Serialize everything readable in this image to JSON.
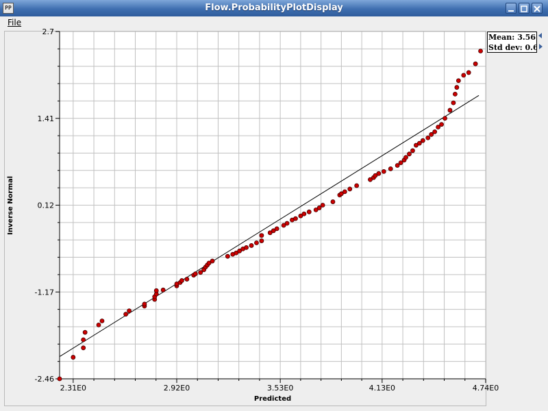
{
  "window": {
    "title": "Flow.ProbabilityPlotDisplay",
    "app_icon_text": "PP"
  },
  "menu": {
    "file_label": "File"
  },
  "stats": {
    "mean": "Mean: 3.56",
    "std_dev": "Std dev: 0.6"
  },
  "chart_data": {
    "type": "scatter",
    "xlabel": "Predicted",
    "ylabel": "Inverse Normal",
    "xlim": [
      2.23,
      4.74
    ],
    "ylim": [
      -2.46,
      2.7
    ],
    "x_ticks": [
      {
        "value": 2.31,
        "label": "2.31E0"
      },
      {
        "value": 2.92,
        "label": "2.92E0"
      },
      {
        "value": 3.53,
        "label": "3.53E0"
      },
      {
        "value": 4.13,
        "label": "4.13E0"
      },
      {
        "value": 4.74,
        "label": "4.74E0"
      }
    ],
    "y_ticks": [
      {
        "value": 2.7,
        "label": "2.7"
      },
      {
        "value": 1.41,
        "label": "1.41"
      },
      {
        "value": 0.12,
        "label": "0.12"
      },
      {
        "value": -1.17,
        "label": "-1.17"
      },
      {
        "value": -2.46,
        "label": "-2.46"
      }
    ],
    "grid": true,
    "fit_line": {
      "x": [
        2.23,
        4.7
      ],
      "y": [
        -2.13,
        1.75
      ]
    },
    "colors": {
      "point": "#cc0000",
      "line": "#000000",
      "grid": "#c0c0c0"
    },
    "points": [
      [
        2.23,
        -2.46
      ],
      [
        2.31,
        -2.14
      ],
      [
        2.37,
        -2.0
      ],
      [
        2.37,
        -1.88
      ],
      [
        2.38,
        -1.77
      ],
      [
        2.46,
        -1.66
      ],
      [
        2.48,
        -1.6
      ],
      [
        2.62,
        -1.5
      ],
      [
        2.64,
        -1.45
      ],
      [
        2.73,
        -1.38
      ],
      [
        2.73,
        -1.35
      ],
      [
        2.79,
        -1.28
      ],
      [
        2.79,
        -1.24
      ],
      [
        2.8,
        -1.2
      ],
      [
        2.8,
        -1.15
      ],
      [
        2.84,
        -1.14
      ],
      [
        2.92,
        -1.08
      ],
      [
        2.92,
        -1.05
      ],
      [
        2.94,
        -1.03
      ],
      [
        2.95,
        -1.0
      ],
      [
        2.98,
        -0.98
      ],
      [
        3.02,
        -0.92
      ],
      [
        3.03,
        -0.9
      ],
      [
        3.06,
        -0.88
      ],
      [
        3.08,
        -0.84
      ],
      [
        3.09,
        -0.8
      ],
      [
        3.1,
        -0.77
      ],
      [
        3.11,
        -0.74
      ],
      [
        3.13,
        -0.71
      ],
      [
        3.22,
        -0.64
      ],
      [
        3.25,
        -0.61
      ],
      [
        3.27,
        -0.59
      ],
      [
        3.29,
        -0.56
      ],
      [
        3.31,
        -0.53
      ],
      [
        3.33,
        -0.51
      ],
      [
        3.36,
        -0.48
      ],
      [
        3.39,
        -0.44
      ],
      [
        3.42,
        -0.41
      ],
      [
        3.42,
        -0.33
      ],
      [
        3.47,
        -0.29
      ],
      [
        3.49,
        -0.26
      ],
      [
        3.51,
        -0.23
      ],
      [
        3.55,
        -0.18
      ],
      [
        3.57,
        -0.15
      ],
      [
        3.6,
        -0.1
      ],
      [
        3.62,
        -0.08
      ],
      [
        3.65,
        -0.04
      ],
      [
        3.67,
        -0.01
      ],
      [
        3.7,
        0.02
      ],
      [
        3.74,
        0.05
      ],
      [
        3.76,
        0.08
      ],
      [
        3.78,
        0.12
      ],
      [
        3.84,
        0.17
      ],
      [
        3.88,
        0.27
      ],
      [
        3.89,
        0.29
      ],
      [
        3.91,
        0.32
      ],
      [
        3.94,
        0.36
      ],
      [
        3.98,
        0.41
      ],
      [
        4.06,
        0.5
      ],
      [
        4.08,
        0.53
      ],
      [
        4.09,
        0.56
      ],
      [
        4.11,
        0.59
      ],
      [
        4.14,
        0.62
      ],
      [
        4.18,
        0.66
      ],
      [
        4.22,
        0.71
      ],
      [
        4.24,
        0.75
      ],
      [
        4.26,
        0.79
      ],
      [
        4.27,
        0.83
      ],
      [
        4.29,
        0.88
      ],
      [
        4.31,
        0.93
      ],
      [
        4.33,
        1.01
      ],
      [
        4.35,
        1.04
      ],
      [
        4.37,
        1.08
      ],
      [
        4.4,
        1.12
      ],
      [
        4.42,
        1.17
      ],
      [
        4.44,
        1.21
      ],
      [
        4.46,
        1.28
      ],
      [
        4.48,
        1.32
      ],
      [
        4.5,
        1.41
      ],
      [
        4.53,
        1.53
      ],
      [
        4.55,
        1.64
      ],
      [
        4.56,
        1.77
      ],
      [
        4.57,
        1.87
      ],
      [
        4.58,
        1.97
      ],
      [
        4.61,
        2.05
      ],
      [
        4.64,
        2.09
      ],
      [
        4.68,
        2.22
      ],
      [
        4.71,
        2.41
      ]
    ]
  }
}
